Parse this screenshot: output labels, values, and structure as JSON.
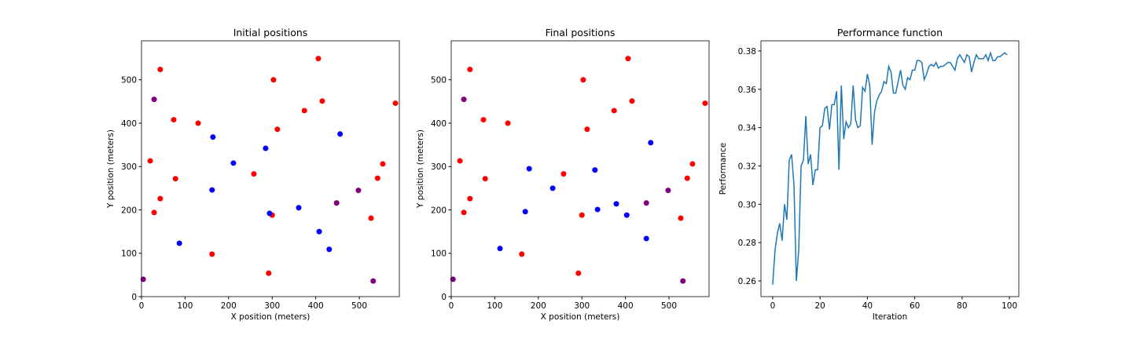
{
  "chart_data": [
    {
      "type": "scatter",
      "title": "Initial positions",
      "x_label": "X position (meters)",
      "y_label": "Y position (meters)",
      "xlim": [
        0,
        592
      ],
      "ylim": [
        0,
        590
      ],
      "xticks": [
        0,
        100,
        200,
        300,
        400,
        500
      ],
      "yticks": [
        0,
        100,
        200,
        300,
        400,
        500
      ],
      "series": [
        {
          "color": "red",
          "x": [
            43,
            74,
            130,
            20,
            78,
            43,
            29,
            162,
            258,
            303,
            312,
            374,
            406,
            415,
            583,
            554,
            542,
            527,
            300,
            292
          ],
          "y": [
            524,
            408,
            400,
            313,
            272,
            226,
            194,
            98,
            283,
            500,
            386,
            429,
            549,
            451,
            446,
            306,
            273,
            181,
            188,
            54
          ]
        },
        {
          "color": "purple",
          "x": [
            29,
            4,
            532,
            498,
            448
          ],
          "y": [
            455,
            40,
            36,
            245,
            216
          ]
        },
        {
          "color": "blue",
          "x": [
            164,
            211,
            162,
            87,
            285,
            294,
            361,
            408,
            431,
            456
          ],
          "y": [
            368,
            308,
            246,
            123,
            342,
            192,
            205,
            150,
            109,
            375
          ]
        }
      ]
    },
    {
      "type": "scatter",
      "title": "Final positions",
      "x_label": "X position (meters)",
      "y_label": "Y position (meters)",
      "xlim": [
        0,
        592
      ],
      "ylim": [
        0,
        590
      ],
      "xticks": [
        0,
        100,
        200,
        300,
        400,
        500
      ],
      "yticks": [
        0,
        100,
        200,
        300,
        400,
        500
      ],
      "series": [
        {
          "color": "red",
          "x": [
            43,
            74,
            130,
            20,
            78,
            43,
            29,
            162,
            258,
            303,
            312,
            374,
            406,
            415,
            583,
            554,
            542,
            527,
            300,
            292
          ],
          "y": [
            524,
            408,
            400,
            313,
            272,
            226,
            194,
            98,
            283,
            500,
            386,
            429,
            549,
            451,
            446,
            306,
            273,
            181,
            188,
            54
          ]
        },
        {
          "color": "purple",
          "x": [
            29,
            4,
            532,
            498,
            448
          ],
          "y": [
            455,
            40,
            36,
            245,
            216
          ]
        },
        {
          "color": "blue",
          "x": [
            179,
            170,
            112,
            233,
            330,
            336,
            379,
            403,
            448,
            458
          ],
          "y": [
            295,
            196,
            111,
            250,
            292,
            201,
            214,
            188,
            134,
            355
          ]
        }
      ]
    },
    {
      "type": "line",
      "title": "Performance function",
      "x_label": "Iteration",
      "y_label": "Performance",
      "xlim": [
        -4.95,
        103.95
      ],
      "ylim": [
        0.2518,
        0.3853
      ],
      "xticks": [
        0,
        20,
        40,
        60,
        80,
        100
      ],
      "yticks": [
        0.26,
        0.28,
        {
          "value": 0.3,
          "label": "0.30"
        },
        0.32,
        0.34,
        0.36,
        0.38
      ],
      "series": [
        {
          "color": "#1f77b4",
          "x": [
            0,
            1,
            2,
            3,
            4,
            5,
            6,
            7,
            8,
            9,
            10,
            11,
            12,
            13,
            14,
            15,
            16,
            17,
            18,
            19,
            20,
            21,
            22,
            23,
            24,
            25,
            26,
            27,
            28,
            29,
            30,
            31,
            32,
            33,
            34,
            35,
            36,
            37,
            38,
            39,
            40,
            41,
            42,
            43,
            44,
            45,
            46,
            47,
            48,
            49,
            50,
            51,
            52,
            53,
            54,
            55,
            56,
            57,
            58,
            59,
            60,
            61,
            62,
            63,
            64,
            65,
            66,
            67,
            68,
            69,
            70,
            71,
            72,
            73,
            74,
            75,
            76,
            77,
            78,
            79,
            80,
            81,
            82,
            83,
            84,
            85,
            86,
            87,
            88,
            89,
            90,
            91,
            92,
            93,
            94,
            95,
            96,
            97,
            98,
            99
          ],
          "values": [
            0.258,
            0.276,
            0.285,
            0.29,
            0.281,
            0.3,
            0.292,
            0.323,
            0.326,
            0.31,
            0.26,
            0.276,
            0.32,
            0.323,
            0.346,
            0.321,
            0.326,
            0.31,
            0.318,
            0.318,
            0.34,
            0.341,
            0.35,
            0.351,
            0.339,
            0.352,
            0.352,
            0.359,
            0.318,
            0.362,
            0.334,
            0.343,
            0.34,
            0.342,
            0.362,
            0.344,
            0.34,
            0.341,
            0.361,
            0.359,
            0.368,
            0.362,
            0.331,
            0.348,
            0.354,
            0.357,
            0.359,
            0.364,
            0.363,
            0.372,
            0.369,
            0.358,
            0.358,
            0.364,
            0.37,
            0.362,
            0.36,
            0.366,
            0.365,
            0.37,
            0.37,
            0.375,
            0.375,
            0.374,
            0.365,
            0.368,
            0.372,
            0.373,
            0.372,
            0.374,
            0.371,
            0.372,
            0.372,
            0.373,
            0.374,
            0.374,
            0.372,
            0.37,
            0.376,
            0.378,
            0.376,
            0.374,
            0.378,
            0.377,
            0.369,
            0.374,
            0.378,
            0.376,
            0.376,
            0.376,
            0.378,
            0.375,
            0.379,
            0.375,
            0.375,
            0.377,
            0.377,
            0.378,
            0.379,
            0.378
          ]
        }
      ]
    }
  ]
}
